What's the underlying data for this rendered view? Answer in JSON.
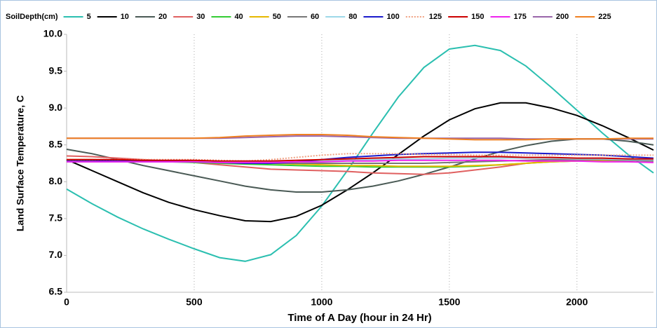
{
  "chart_data": {
    "type": "line",
    "x_label": "Time of A Day (hour in 24 Hr)",
    "y_label": "Land Surface Temperature, C",
    "legend_title": "SoilDepth(cm)",
    "legend_position": "top",
    "grid": "x",
    "x": [
      0,
      100,
      200,
      300,
      400,
      500,
      600,
      700,
      800,
      900,
      1000,
      1100,
      1200,
      1300,
      1400,
      1500,
      1600,
      1700,
      1800,
      1900,
      2000,
      2100,
      2200,
      2300
    ],
    "xlim": [
      0,
      2300
    ],
    "xticks": [
      0,
      500,
      1000,
      1500,
      2000
    ],
    "ylim": [
      6.5,
      10
    ],
    "yticks": [
      6.5,
      {
        "value": 7,
        "label": "7.0"
      },
      7.5,
      {
        "value": 8,
        "label": "8.0"
      },
      8.5,
      {
        "value": 9,
        "label": "9.0"
      },
      9.5,
      {
        "value": 10,
        "label": "10.0"
      }
    ],
    "series": [
      {
        "name": "5",
        "color": "#2bbfb0",
        "values": [
          7.9,
          7.7,
          7.52,
          7.36,
          7.22,
          7.09,
          6.97,
          6.92,
          7.01,
          7.27,
          7.67,
          8.15,
          8.66,
          9.15,
          9.55,
          9.8,
          9.85,
          9.78,
          9.57,
          9.28,
          8.97,
          8.66,
          8.37,
          8.12
        ]
      },
      {
        "name": "10",
        "color": "#000000",
        "values": [
          8.3,
          8.15,
          8.0,
          7.85,
          7.72,
          7.62,
          7.54,
          7.47,
          7.46,
          7.53,
          7.68,
          7.89,
          8.12,
          8.37,
          8.62,
          8.84,
          8.99,
          9.07,
          9.07,
          9.0,
          8.9,
          8.76,
          8.6,
          8.43
        ]
      },
      {
        "name": "20",
        "color": "#4a5a55",
        "values": [
          8.44,
          8.38,
          8.3,
          8.22,
          8.15,
          8.08,
          8.01,
          7.94,
          7.89,
          7.86,
          7.86,
          7.89,
          7.94,
          8.01,
          8.1,
          8.2,
          8.31,
          8.41,
          8.49,
          8.55,
          8.58,
          8.58,
          8.55,
          8.5
        ]
      },
      {
        "name": "30",
        "color": "#e06060",
        "values": [
          8.35,
          8.34,
          8.32,
          8.3,
          8.28,
          8.26,
          8.23,
          8.2,
          8.17,
          8.16,
          8.15,
          8.14,
          8.12,
          8.11,
          8.1,
          8.12,
          8.16,
          8.2,
          8.25,
          8.28,
          8.3,
          8.31,
          8.31,
          8.3
        ]
      },
      {
        "name": "40",
        "color": "#33cc33",
        "values": [
          8.28,
          8.28,
          8.28,
          8.27,
          8.27,
          8.26,
          8.25,
          8.24,
          8.23,
          8.22,
          8.21,
          8.21,
          8.2,
          8.2,
          8.2,
          8.2,
          8.21,
          8.23,
          8.25,
          8.27,
          8.28,
          8.29,
          8.29,
          8.29
        ]
      },
      {
        "name": "50",
        "color": "#e6b800",
        "values": [
          8.3,
          8.3,
          8.29,
          8.29,
          8.28,
          8.28,
          8.27,
          8.26,
          8.25,
          8.24,
          8.23,
          8.22,
          8.22,
          8.21,
          8.21,
          8.21,
          8.22,
          8.23,
          8.25,
          8.27,
          8.28,
          8.29,
          8.29,
          8.29
        ]
      },
      {
        "name": "60",
        "color": "#777777",
        "values": [
          8.27,
          8.27,
          8.27,
          8.27,
          8.27,
          8.27,
          8.26,
          8.26,
          8.25,
          8.25,
          8.25,
          8.25,
          8.25,
          8.25,
          8.25,
          8.26,
          8.27,
          8.28,
          8.29,
          8.3,
          8.3,
          8.3,
          8.29,
          8.28
        ]
      },
      {
        "name": "80",
        "color": "#9dd8e8",
        "values": [
          8.27,
          8.27,
          8.27,
          8.27,
          8.27,
          8.27,
          8.27,
          8.27,
          8.27,
          8.28,
          8.28,
          8.29,
          8.3,
          8.31,
          8.31,
          8.32,
          8.32,
          8.32,
          8.32,
          8.32,
          8.31,
          8.31,
          8.3,
          8.3
        ]
      },
      {
        "name": "100",
        "color": "#1a1acc",
        "values": [
          8.29,
          8.29,
          8.28,
          8.28,
          8.28,
          8.27,
          8.26,
          8.25,
          8.25,
          8.27,
          8.3,
          8.33,
          8.35,
          8.37,
          8.38,
          8.39,
          8.4,
          8.4,
          8.39,
          8.38,
          8.37,
          8.36,
          8.34,
          8.32
        ]
      },
      {
        "name": "125",
        "color": "#f0a080",
        "style": "dotted",
        "values": [
          8.3,
          8.3,
          8.3,
          8.3,
          8.3,
          8.3,
          8.29,
          8.28,
          8.3,
          8.33,
          8.36,
          8.38,
          8.38,
          8.38,
          8.37,
          8.37,
          8.36,
          8.36,
          8.36,
          8.36,
          8.36,
          8.36,
          8.36,
          8.36
        ]
      },
      {
        "name": "150",
        "color": "#cc0000",
        "values": [
          8.3,
          8.3,
          8.3,
          8.29,
          8.29,
          8.29,
          8.28,
          8.28,
          8.28,
          8.29,
          8.3,
          8.31,
          8.32,
          8.33,
          8.34,
          8.34,
          8.34,
          8.34,
          8.33,
          8.33,
          8.32,
          8.32,
          8.31,
          8.31
        ]
      },
      {
        "name": "175",
        "color": "#ee22ee",
        "values": [
          8.27,
          8.27,
          8.27,
          8.27,
          8.27,
          8.27,
          8.26,
          8.26,
          8.26,
          8.27,
          8.27,
          8.28,
          8.28,
          8.29,
          8.29,
          8.29,
          8.29,
          8.29,
          8.28,
          8.28,
          8.28,
          8.27,
          8.27,
          8.26
        ]
      },
      {
        "name": "200",
        "color": "#9966aa",
        "values": [
          8.59,
          8.59,
          8.59,
          8.59,
          8.59,
          8.59,
          8.59,
          8.6,
          8.61,
          8.62,
          8.62,
          8.61,
          8.6,
          8.59,
          8.59,
          8.59,
          8.59,
          8.59,
          8.58,
          8.58,
          8.58,
          8.58,
          8.58,
          8.58
        ]
      },
      {
        "name": "225",
        "color": "#f08020",
        "values": [
          8.59,
          8.59,
          8.59,
          8.59,
          8.59,
          8.59,
          8.6,
          8.62,
          8.63,
          8.64,
          8.64,
          8.63,
          8.61,
          8.6,
          8.59,
          8.58,
          8.57,
          8.57,
          8.57,
          8.58,
          8.58,
          8.58,
          8.59,
          8.59
        ]
      }
    ]
  }
}
